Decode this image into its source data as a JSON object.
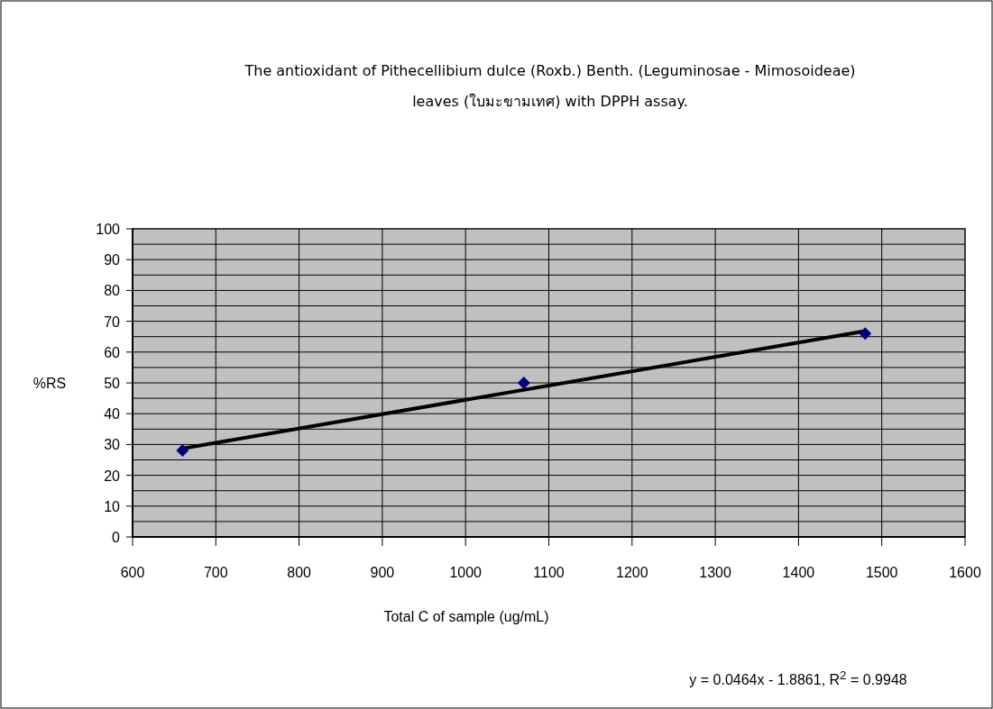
{
  "chart_data": {
    "type": "scatter",
    "title": "The antioxidant of Pithecellibium dulce (Roxb.) Benth. (Leguminosae - Mimosoideae) leaves (ใบมะขามเทศ) with DPPH assay.",
    "xlabel": "Total C of sample (ug/mL)",
    "ylabel": "%RS",
    "series": [
      {
        "type": "scatter",
        "color": "#000080",
        "marker": "diamond",
        "x": [
          660,
          1070,
          1480
        ],
        "values": [
          28.1,
          50,
          66
        ]
      },
      {
        "type": "line",
        "color": "#000000",
        "marker": "none",
        "x": [
          660,
          1480
        ],
        "values": [
          28.7,
          66.8
        ]
      }
    ],
    "xlim": [
      600,
      1600
    ],
    "xticks": [
      600,
      700,
      800,
      900,
      1000,
      1100,
      1200,
      1300,
      1400,
      1500,
      1600
    ],
    "ylim": [
      0,
      100
    ],
    "yticks": [
      0,
      {
        "value": 5,
        "label": null
      },
      10,
      {
        "value": 15,
        "label": null
      },
      20,
      {
        "value": 25,
        "label": null
      },
      30,
      {
        "value": 35,
        "label": null
      },
      40,
      {
        "value": 45,
        "label": null
      },
      50,
      {
        "value": 55,
        "label": null
      },
      60,
      {
        "value": 65,
        "label": null
      },
      70,
      {
        "value": 75,
        "label": null
      },
      80,
      {
        "value": 85,
        "label": null
      },
      90,
      {
        "value": 95,
        "label": null
      },
      100
    ],
    "grid": true,
    "annotations": [
      "y = 0.0464x - 1.8861, R$^{2}$ = 0.9948"
    ]
  }
}
